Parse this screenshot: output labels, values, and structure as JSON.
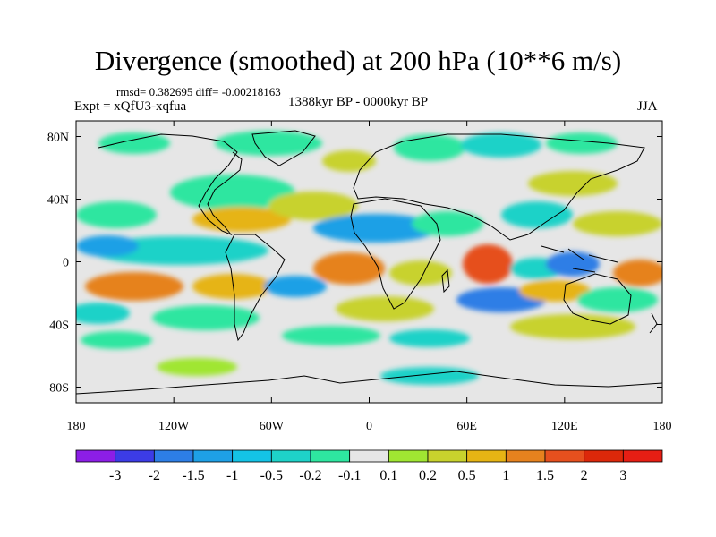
{
  "title": "Divergence (smoothed) at 200 hPa (10**6 m/s)",
  "stats": "rmsd= 0.382695 diff= -0.00218163",
  "expt": "Expt = xQfU3-xqfua",
  "period": "1388kyr BP - 0000kyr BP",
  "season": "JJA",
  "map": {
    "lat_ticks": [
      {
        "label": "80N",
        "lat": 80
      },
      {
        "label": "40N",
        "lat": 40
      },
      {
        "label": "0",
        "lat": 0
      },
      {
        "label": "40S",
        "lat": -40
      },
      {
        "label": "80S",
        "lat": -80
      }
    ],
    "lon_ticks": [
      {
        "label": "180",
        "lon": -180
      },
      {
        "label": "120W",
        "lon": -120
      },
      {
        "label": "60W",
        "lon": -60
      },
      {
        "label": "0",
        "lon": 0
      },
      {
        "label": "60E",
        "lon": 60
      },
      {
        "label": "120E",
        "lon": 120
      },
      {
        "label": "180",
        "lon": 180
      }
    ],
    "background_color": "#e6e6e6",
    "coast_color": "#000000"
  },
  "colorbar": {
    "labels": [
      "-3",
      "-2",
      "-1.5",
      "-1",
      "-0.5",
      "-0.2",
      "-0.1",
      "0.1",
      "0.2",
      "0.5",
      "1",
      "1.5",
      "2",
      "3"
    ],
    "colors": [
      "#8c1ee6",
      "#3c3ce6",
      "#2d7ee6",
      "#1ea0e6",
      "#14c3e6",
      "#1ed2c8",
      "#2ee6a0",
      "#e6e6e6",
      "#a0e632",
      "#c8d22d",
      "#e6b414",
      "#e6821e",
      "#e6501e",
      "#dc280a",
      "#e61e14"
    ]
  }
}
